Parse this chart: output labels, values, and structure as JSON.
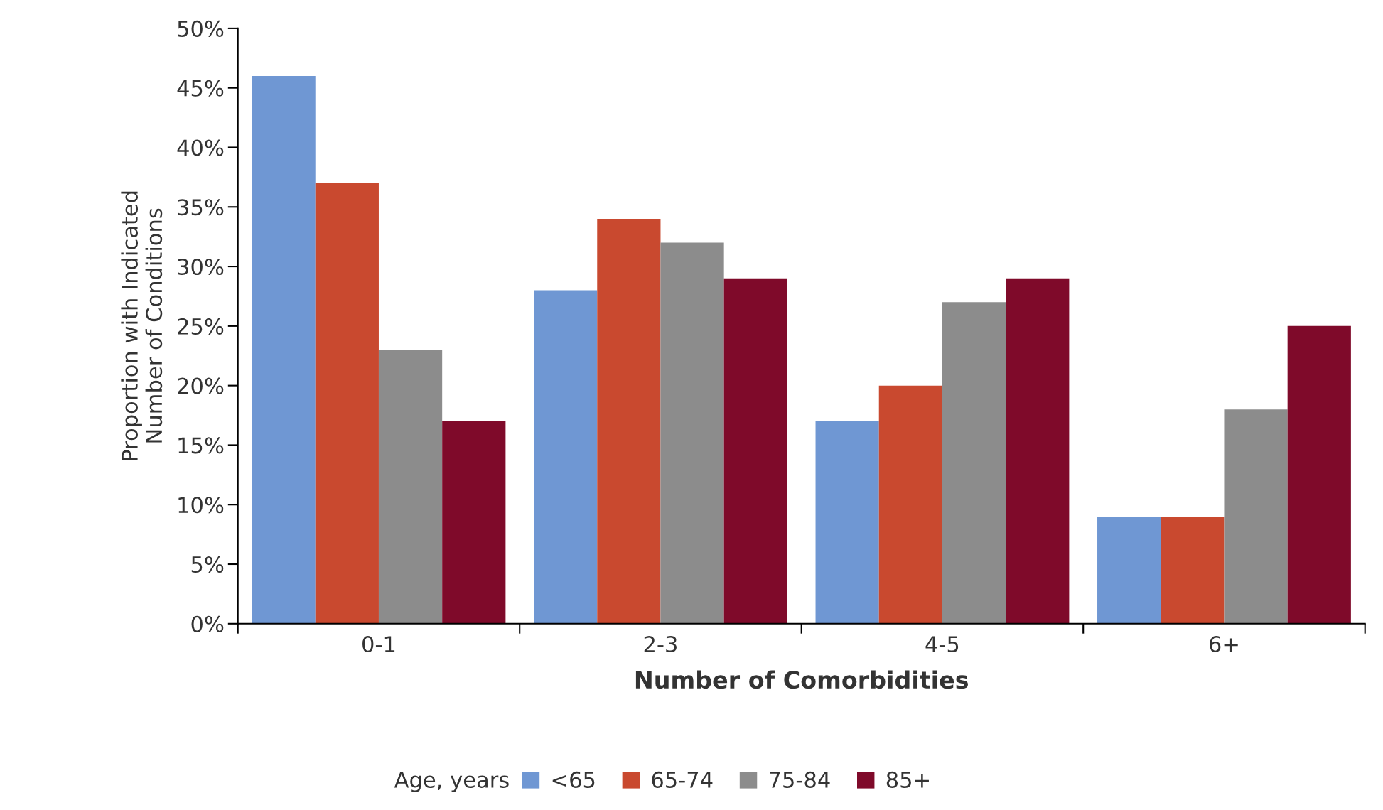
{
  "chart_data": {
    "type": "bar",
    "xlabel": "Number of Comorbidities",
    "ylabel": "Proportion with Indicated\nNumber of Conditions",
    "legend_title": "Age, years",
    "legend": "bottom",
    "grid": false,
    "categories": [
      "0-1",
      "2-3",
      "4-5",
      "6+"
    ],
    "series": [
      {
        "name": "<65",
        "color": "#6f97d3",
        "values": [
          46,
          28,
          17,
          9
        ]
      },
      {
        "name": "65-74",
        "color": "#c9492f",
        "values": [
          37,
          34,
          20,
          9
        ]
      },
      {
        "name": "75-84",
        "color": "#8c8c8c",
        "values": [
          23,
          32,
          27,
          18
        ]
      },
      {
        "name": "85+",
        "color": "#7f0a2a",
        "values": [
          17,
          29,
          29,
          25
        ]
      }
    ],
    "ylim": [
      0,
      50
    ],
    "yticks": [
      {
        "value": 0,
        "label": "0%"
      },
      {
        "value": 5,
        "label": "5%"
      },
      {
        "value": 10,
        "label": "10%"
      },
      {
        "value": 15,
        "label": "15%"
      },
      {
        "value": 20,
        "label": "20%"
      },
      {
        "value": 25,
        "label": "25%"
      },
      {
        "value": 30,
        "label": "30%"
      },
      {
        "value": 35,
        "label": "35%"
      },
      {
        "value": 40,
        "label": "40%"
      },
      {
        "value": 45,
        "label": "45%"
      },
      {
        "value": 50,
        "label": "50%"
      }
    ]
  }
}
